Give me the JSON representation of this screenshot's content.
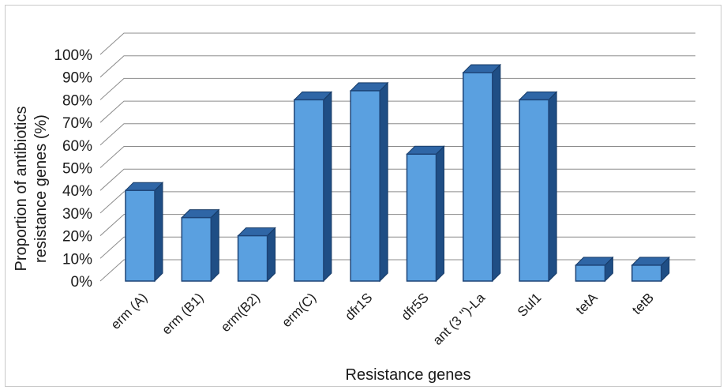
{
  "chart_data": {
    "type": "bar",
    "categories": [
      "erm (A)",
      "erm (B1)",
      "erm(B2)",
      "erm(C)",
      "dfr1S",
      "dfr5S",
      "ant (3 '')-La",
      "Sul1",
      "tetA",
      "tetB"
    ],
    "values": [
      40,
      28,
      20,
      80,
      84,
      56,
      92,
      80,
      7,
      7
    ],
    "title": "",
    "xlabel": "Resistance genes",
    "ylabel": "Proportion of antibiotics resistance genes (%)",
    "ylabel_lines": [
      "Proportion of antibiotics",
      "resistance genes (%)"
    ],
    "ylim": [
      0,
      100
    ],
    "y_ticks": [
      "0%",
      "10%",
      "20%",
      "30%",
      "40%",
      "50%",
      "60%",
      "70%",
      "80%",
      "90%",
      "100%"
    ],
    "grid": true,
    "legend": "none",
    "style": "3d-column",
    "colors": {
      "bar_front": "#5aa0e0",
      "bar_side": "#1f4e85",
      "bar_top": "#2f66a6",
      "grid": "#8c8c8c"
    }
  }
}
